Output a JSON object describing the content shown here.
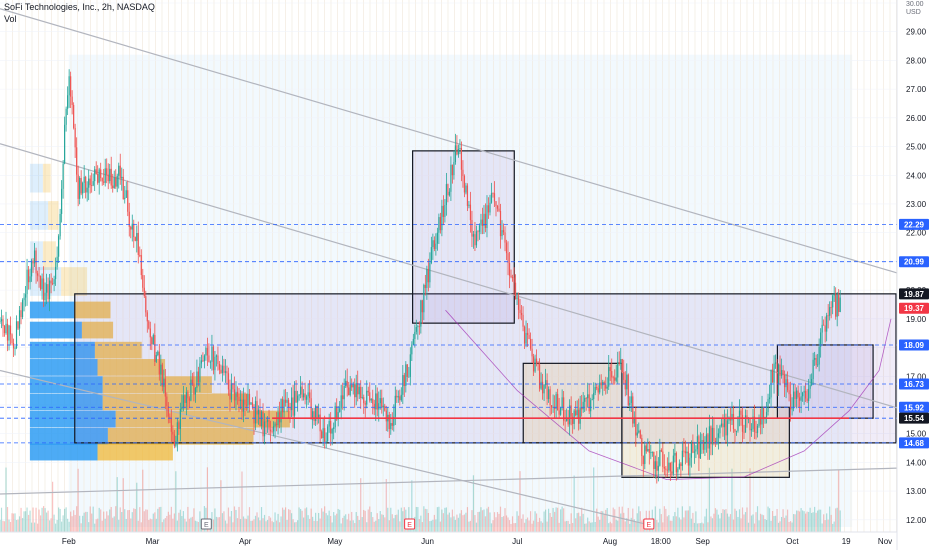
{
  "header": {
    "title": "SoFi Technologies, Inc., 2h, NASDAQ",
    "volume_label": "Vol",
    "currency": "USD"
  },
  "colors": {
    "up": "#26a69a",
    "down": "#ef5350",
    "box_fill": "#9575cd",
    "box_stroke": "#131722",
    "dashed": "#2962ff",
    "support_line": "#f23645",
    "trend_line": "#b2b5be",
    "arc": "#9c27b0",
    "profile_blue": "#2196f3",
    "profile_yellow": "#f0b429"
  },
  "chart_data": {
    "type": "candlestick",
    "symbol": "SOFI",
    "interval": "2h",
    "exchange": "NASDAQ",
    "x_axis": {
      "labels": [
        "Feb",
        "Mar",
        "Apr",
        "May",
        "Jun",
        "Jul",
        "Aug",
        "18:00",
        "Sep",
        "Oct",
        "19",
        "Nov"
      ],
      "label_dates": [
        "2025-02-01",
        "2025-03-01",
        "2025-04-01",
        "2025-05-01",
        "2025-06-01",
        "2025-07-01",
        "2025-08-01",
        "2025-08-18",
        "2025-09-01",
        "2025-10-01",
        "2025-10-19",
        "2025-11-01"
      ],
      "range": [
        "2025-01-09",
        "2025-11-05"
      ]
    },
    "y_axis": {
      "ticks": [
        12,
        13,
        14,
        15,
        16,
        17,
        18,
        19,
        20,
        21,
        22,
        23,
        24,
        25,
        26,
        27,
        28,
        29,
        30
      ],
      "tick_labels": [
        "12.00",
        "13.00",
        "14.00",
        "15.00",
        "16.00",
        "17.00",
        "18.00",
        "19.00",
        "20.00",
        "21.00",
        "22.00",
        "23.00",
        "24.00",
        "25.00",
        "26.00",
        "27.00",
        "28.00",
        "29.00",
        "30.00"
      ],
      "range": [
        11.75,
        30.0
      ]
    },
    "price_path": [
      [
        "2025-01-09",
        18.9
      ],
      [
        "2025-01-14",
        18.3
      ],
      [
        "2025-01-20",
        21.4
      ],
      [
        "2025-01-24",
        19.8
      ],
      [
        "2025-01-28",
        21.0
      ],
      [
        "2025-02-01",
        27.8
      ],
      [
        "2025-02-04",
        23.5
      ],
      [
        "2025-02-10",
        23.8
      ],
      [
        "2025-02-18",
        24.0
      ],
      [
        "2025-02-24",
        21.5
      ],
      [
        "2025-02-28",
        18.5
      ],
      [
        "2025-03-03",
        17.5
      ],
      [
        "2025-03-08",
        14.8
      ],
      [
        "2025-03-12",
        16.2
      ],
      [
        "2025-03-20",
        17.8
      ],
      [
        "2025-03-27",
        16.5
      ],
      [
        "2025-04-04",
        15.8
      ],
      [
        "2025-04-08",
        15.2
      ],
      [
        "2025-04-14",
        15.9
      ],
      [
        "2025-04-21",
        16.3
      ],
      [
        "2025-04-28",
        15.0
      ],
      [
        "2025-05-05",
        16.8
      ],
      [
        "2025-05-12",
        16.2
      ],
      [
        "2025-05-20",
        15.5
      ],
      [
        "2025-05-26",
        17.5
      ],
      [
        "2025-06-01",
        20.5
      ],
      [
        "2025-06-06",
        22.8
      ],
      [
        "2025-06-11",
        25.0
      ],
      [
        "2025-06-17",
        21.5
      ],
      [
        "2025-06-23",
        23.2
      ],
      [
        "2025-06-28",
        21.0
      ],
      [
        "2025-07-01",
        19.5
      ],
      [
        "2025-07-05",
        18.0
      ],
      [
        "2025-07-10",
        16.5
      ],
      [
        "2025-07-20",
        15.4
      ],
      [
        "2025-07-30",
        16.8
      ],
      [
        "2025-08-05",
        17.4
      ],
      [
        "2025-08-12",
        14.2
      ],
      [
        "2025-08-22",
        14.0
      ],
      [
        "2025-09-01",
        14.6
      ],
      [
        "2025-09-10",
        15.5
      ],
      [
        "2025-09-20",
        15.2
      ],
      [
        "2025-09-25",
        17.3
      ],
      [
        "2025-10-01",
        16.0
      ],
      [
        "2025-10-06",
        16.3
      ],
      [
        "2025-10-10",
        18.0
      ],
      [
        "2025-10-14",
        19.5
      ],
      [
        "2025-10-17",
        19.37
      ]
    ],
    "price_levels": [
      {
        "value": 22.29,
        "label": "22.29",
        "color": "#2962ff"
      },
      {
        "value": 20.99,
        "label": "20.99",
        "color": "#2962ff"
      },
      {
        "value": 19.87,
        "label": "19.87",
        "color": "#131722"
      },
      {
        "value": 19.37,
        "label": "19.37",
        "color": "#f23645"
      },
      {
        "value": 18.09,
        "label": "18.09",
        "color": "#2962ff"
      },
      {
        "value": 16.73,
        "label": "16.73",
        "color": "#2962ff"
      },
      {
        "value": 15.92,
        "label": "15.92",
        "color": "#2962ff"
      },
      {
        "value": 15.54,
        "label": "15.54",
        "color": "#131722"
      },
      {
        "value": 14.68,
        "label": "14.68",
        "color": "#2962ff"
      }
    ],
    "dashed_levels": [
      22.29,
      20.99,
      18.09,
      16.73,
      15.92,
      15.54,
      14.68
    ],
    "support_line": {
      "from": "2025-04-10",
      "to": "2025-10-20",
      "value": 15.54
    },
    "boxes": [
      {
        "x": [
          "2025-02-03",
          "2025-11-05"
        ],
        "y": [
          14.68,
          19.87
        ]
      },
      {
        "x": [
          "2025-05-27",
          "2025-06-30"
        ],
        "y": [
          18.85,
          24.85
        ]
      },
      {
        "x": [
          "2025-07-03",
          "2025-08-05"
        ],
        "y": [
          14.68,
          17.45
        ]
      },
      {
        "x": [
          "2025-08-05",
          "2025-09-30"
        ],
        "y": [
          13.48,
          15.92
        ]
      },
      {
        "x": [
          "2025-09-26",
          "2025-10-28"
        ],
        "y": [
          15.54,
          18.09
        ]
      }
    ],
    "trend_lines": [
      {
        "from": [
          "2025-01-09",
          29.8
        ],
        "to": [
          "2025-11-05",
          20.6
        ]
      },
      {
        "from": [
          "2025-01-09",
          25.1
        ],
        "to": [
          "2025-11-05",
          15.9
        ]
      },
      {
        "from": [
          "2025-01-09",
          17.2
        ],
        "to": [
          "2025-08-15",
          11.8
        ]
      },
      {
        "from": [
          "2025-01-09",
          12.9
        ],
        "to": [
          "2025-11-05",
          13.8
        ]
      }
    ],
    "arc": [
      [
        "2025-06-07",
        19.3
      ],
      [
        "2025-07-01",
        16.5
      ],
      [
        "2025-07-25",
        14.4
      ],
      [
        "2025-08-20",
        13.4
      ],
      [
        "2025-09-15",
        13.5
      ],
      [
        "2025-10-05",
        14.4
      ],
      [
        "2025-10-20",
        15.8
      ],
      [
        "2025-10-30",
        17.2
      ],
      [
        "2025-11-03",
        19.0
      ]
    ],
    "volume_profile": [
      {
        "price": 19.3,
        "buy": 0.17,
        "sell": 0.14
      },
      {
        "price": 18.6,
        "buy": 0.2,
        "sell": 0.12
      },
      {
        "price": 17.9,
        "buy": 0.25,
        "sell": 0.18
      },
      {
        "price": 17.3,
        "buy": 0.26,
        "sell": 0.26
      },
      {
        "price": 16.7,
        "buy": 0.28,
        "sell": 0.42
      },
      {
        "price": 16.1,
        "buy": 0.28,
        "sell": 0.56
      },
      {
        "price": 15.5,
        "buy": 0.33,
        "sell": 0.67
      },
      {
        "price": 14.9,
        "buy": 0.3,
        "sell": 0.56
      },
      {
        "price": 14.35,
        "buy": 0.26,
        "sell": 0.29
      }
    ],
    "event_markers": [
      {
        "date": "2025-03-19",
        "label": "E",
        "color": "#6a6d78"
      },
      {
        "date": "2025-05-26",
        "label": "E",
        "color": "#f23645"
      },
      {
        "date": "2025-08-14",
        "label": "E",
        "color": "#f23645"
      }
    ],
    "last_price": {
      "value": 19.37,
      "label": "19.37"
    }
  }
}
